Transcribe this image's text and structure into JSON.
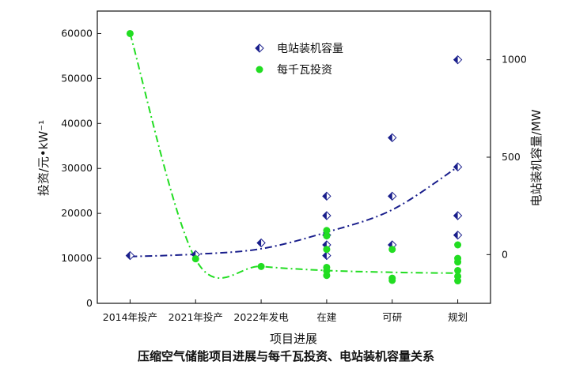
{
  "chart_data": {
    "type": "scatter",
    "caption": "压缩空气储能项目进展与每千瓦投资、电站装机容量关系",
    "xlabel": "项目进展",
    "ylabel_left": "投资/元•kW⁻¹",
    "ylabel_right": "电站装机容量/MW",
    "categories": [
      "2014年投产",
      "2021年投产",
      "2022年发电",
      "在建",
      "可研",
      "规划"
    ],
    "left_axis": {
      "ylim": [
        0,
        65000
      ],
      "ticks": [
        "0",
        "10000",
        "20000",
        "30000",
        "40000",
        "50000",
        "60000"
      ],
      "tick_values": [
        0,
        10000,
        20000,
        30000,
        40000,
        50000,
        60000
      ]
    },
    "right_axis": {
      "ylim": [
        -250,
        1250
      ],
      "ticks": [
        "0",
        "500",
        "1000"
      ],
      "tick_values": [
        0,
        500,
        1000
      ]
    },
    "series": [
      {
        "name": "电站装机容量",
        "axis": "right",
        "marker": "half-filled diamond",
        "color": "#1a1f8c",
        "points": [
          {
            "category": "2014年投产",
            "values": [
              -5
            ]
          },
          {
            "category": "2021年投产",
            "values": [
              0
            ]
          },
          {
            "category": "2022年发电",
            "values": [
              60
            ]
          },
          {
            "category": "在建",
            "values": [
              -5,
              50,
              100,
              200,
              300
            ]
          },
          {
            "category": "可研",
            "values": [
              50,
              300,
              600
            ]
          },
          {
            "category": "规划",
            "values": [
              100,
              200,
              450,
              1000
            ]
          }
        ]
      },
      {
        "name": "每千瓦投资",
        "axis": "left",
        "marker": "filled circle",
        "color": "#22dd22",
        "points": [
          {
            "category": "2014年投产",
            "values": [
              60000
            ]
          },
          {
            "category": "2021年投产",
            "values": [
              9900
            ]
          },
          {
            "category": "2022年发电",
            "values": [
              8200
            ]
          },
          {
            "category": "在建",
            "values": [
              6200,
              7200,
              8000,
              12000,
              15000,
              16200
            ]
          },
          {
            "category": "可研",
            "values": [
              5100,
              5600,
              12000
            ]
          },
          {
            "category": "规划",
            "values": [
              5000,
              6000,
              7300,
              9200,
              10000,
              13000
            ]
          }
        ]
      }
    ],
    "trendlines": [
      {
        "axis": "right",
        "style": "dash-dot",
        "color": "#1a1f8c",
        "values": [
          -10,
          2,
          30,
          115,
          230,
          450
        ]
      },
      {
        "axis": "left",
        "style": "dash-dot",
        "color": "#22dd22",
        "values": [
          60000,
          9800,
          8200,
          7300,
          6900,
          6700
        ]
      }
    ],
    "legend_placement": "top-right",
    "grid": false
  }
}
